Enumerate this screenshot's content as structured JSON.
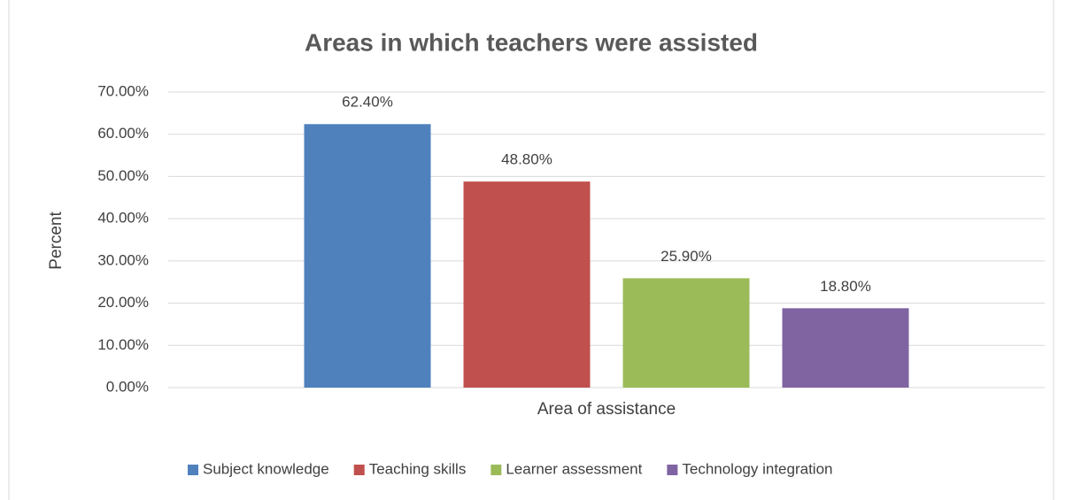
{
  "chart_data": {
    "type": "bar",
    "title": "Areas in which teachers were assisted",
    "y_label": "Percent",
    "x_label": "Area of assistance",
    "categories": [
      null
    ],
    "series": [
      {
        "name": "Subject knowledge",
        "color": "#4f81bd",
        "values": [
          62.4
        ],
        "value_labels": [
          "62.40%"
        ]
      },
      {
        "name": "Teaching skills",
        "color": "#c0504d",
        "values": [
          48.8
        ],
        "value_labels": [
          "48.80%"
        ]
      },
      {
        "name": "Learner assessment",
        "color": "#9bbb59",
        "values": [
          25.9
        ],
        "value_labels": [
          "25.90%"
        ]
      },
      {
        "name": "Technology integration",
        "color": "#8064a2",
        "values": [
          18.8
        ],
        "value_labels": [
          "18.80%"
        ]
      }
    ],
    "ylim": [
      0,
      70
    ],
    "yticks": [
      {
        "value": 0,
        "label": "0.00%"
      },
      {
        "value": 10,
        "label": "10.00%"
      },
      {
        "value": 20,
        "label": "20.00%"
      },
      {
        "value": 30,
        "label": "30.00%"
      },
      {
        "value": 40,
        "label": "40.00%"
      },
      {
        "value": 50,
        "label": "50.00%"
      },
      {
        "value": 60,
        "label": "60.00%"
      },
      {
        "value": 70,
        "label": "70.00%"
      }
    ],
    "grid": true,
    "legend": "bottom"
  }
}
